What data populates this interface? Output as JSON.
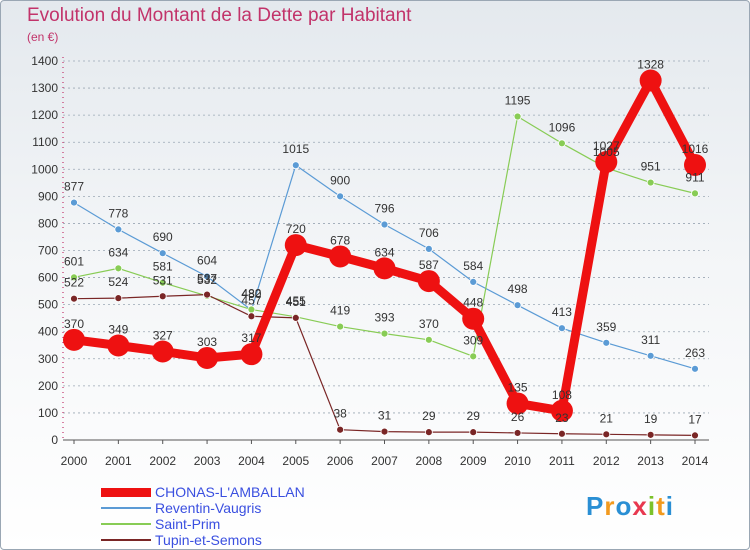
{
  "header": {
    "title": "Evolution du Montant de la Dette par Habitant",
    "subtitle": "(en €)"
  },
  "colors": {
    "title": "#c2336a",
    "axis": "#c2336a",
    "grid": "#9aa7b4",
    "label": "#333333"
  },
  "logo": {
    "letters": [
      "P",
      "r",
      "o",
      "x",
      "i",
      "t",
      "i"
    ],
    "colors": [
      "#2a8fd4",
      "#f29a1e",
      "#2a8fd4",
      "#e8384f",
      "#7cc22a",
      "#f29a1e",
      "#2a8fd4"
    ]
  },
  "chart_data": {
    "type": "line",
    "title": "Evolution du Montant de la Dette par Habitant",
    "subtitle": "(en €)",
    "x": [
      "2000",
      "2001",
      "2002",
      "2003",
      "2004",
      "2005",
      "2006",
      "2007",
      "2008",
      "2009",
      "2010",
      "2011",
      "2012",
      "2013",
      "2014"
    ],
    "ylim": [
      0,
      1400
    ],
    "yticks": [
      0,
      100,
      200,
      300,
      400,
      500,
      600,
      700,
      800,
      900,
      1000,
      1100,
      1200,
      1300,
      1400
    ],
    "grid": "horizontal dashed",
    "legend_position": "bottom-left",
    "series": [
      {
        "name": "CHONAS-L'AMBALLAN",
        "color": "#ee1111",
        "legend_color": "#3a4fe0",
        "width": 9,
        "marker": 11,
        "values": [
          370,
          349,
          327,
          303,
          317,
          720,
          678,
          634,
          587,
          448,
          135,
          108,
          1027,
          1328,
          1016
        ],
        "labels": [
          "370",
          "349",
          "327",
          "303",
          "317",
          "720",
          "678",
          "634",
          "587",
          "448",
          "135",
          "108",
          "1027",
          "1328",
          "1016"
        ]
      },
      {
        "name": "Reventin-Vaugris",
        "color": "#5b9bd5",
        "legend_color": "#3a4fe0",
        "width": 1.2,
        "marker": 3.5,
        "values": [
          877,
          778,
          690,
          604,
          480,
          1015,
          900,
          796,
          706,
          584,
          498,
          413,
          359,
          311,
          263
        ],
        "labels": [
          "877",
          "778",
          "690",
          "604",
          "480",
          "1015",
          "900",
          "796",
          "706",
          "584",
          "498",
          "413",
          "359",
          "311",
          "263"
        ]
      },
      {
        "name": "Saint-Prim",
        "color": "#88cc55",
        "legend_color": "#3a4fe0",
        "width": 1.2,
        "marker": 3.5,
        "values": [
          601,
          634,
          581,
          532,
          482,
          455,
          419,
          393,
          370,
          309,
          1195,
          1096,
          1005,
          951,
          911
        ],
        "labels": [
          "601",
          "634",
          "581",
          "532",
          "482",
          "455",
          "419",
          "393",
          "370",
          "309",
          "1195",
          "1096",
          "1005",
          "951",
          "911"
        ]
      },
      {
        "name": "Tupin-et-Semons",
        "color": "#7a2626",
        "legend_color": "#3a4fe0",
        "width": 1.2,
        "marker": 3.5,
        "values": [
          522,
          524,
          531,
          537,
          457,
          451,
          38,
          31,
          29,
          29,
          26,
          23,
          21,
          19,
          17
        ],
        "labels": [
          "522",
          "524",
          "531",
          "537",
          "457",
          "451",
          "38",
          "31",
          "29",
          "29",
          "26",
          "23",
          "21",
          "19",
          "17"
        ]
      }
    ]
  }
}
